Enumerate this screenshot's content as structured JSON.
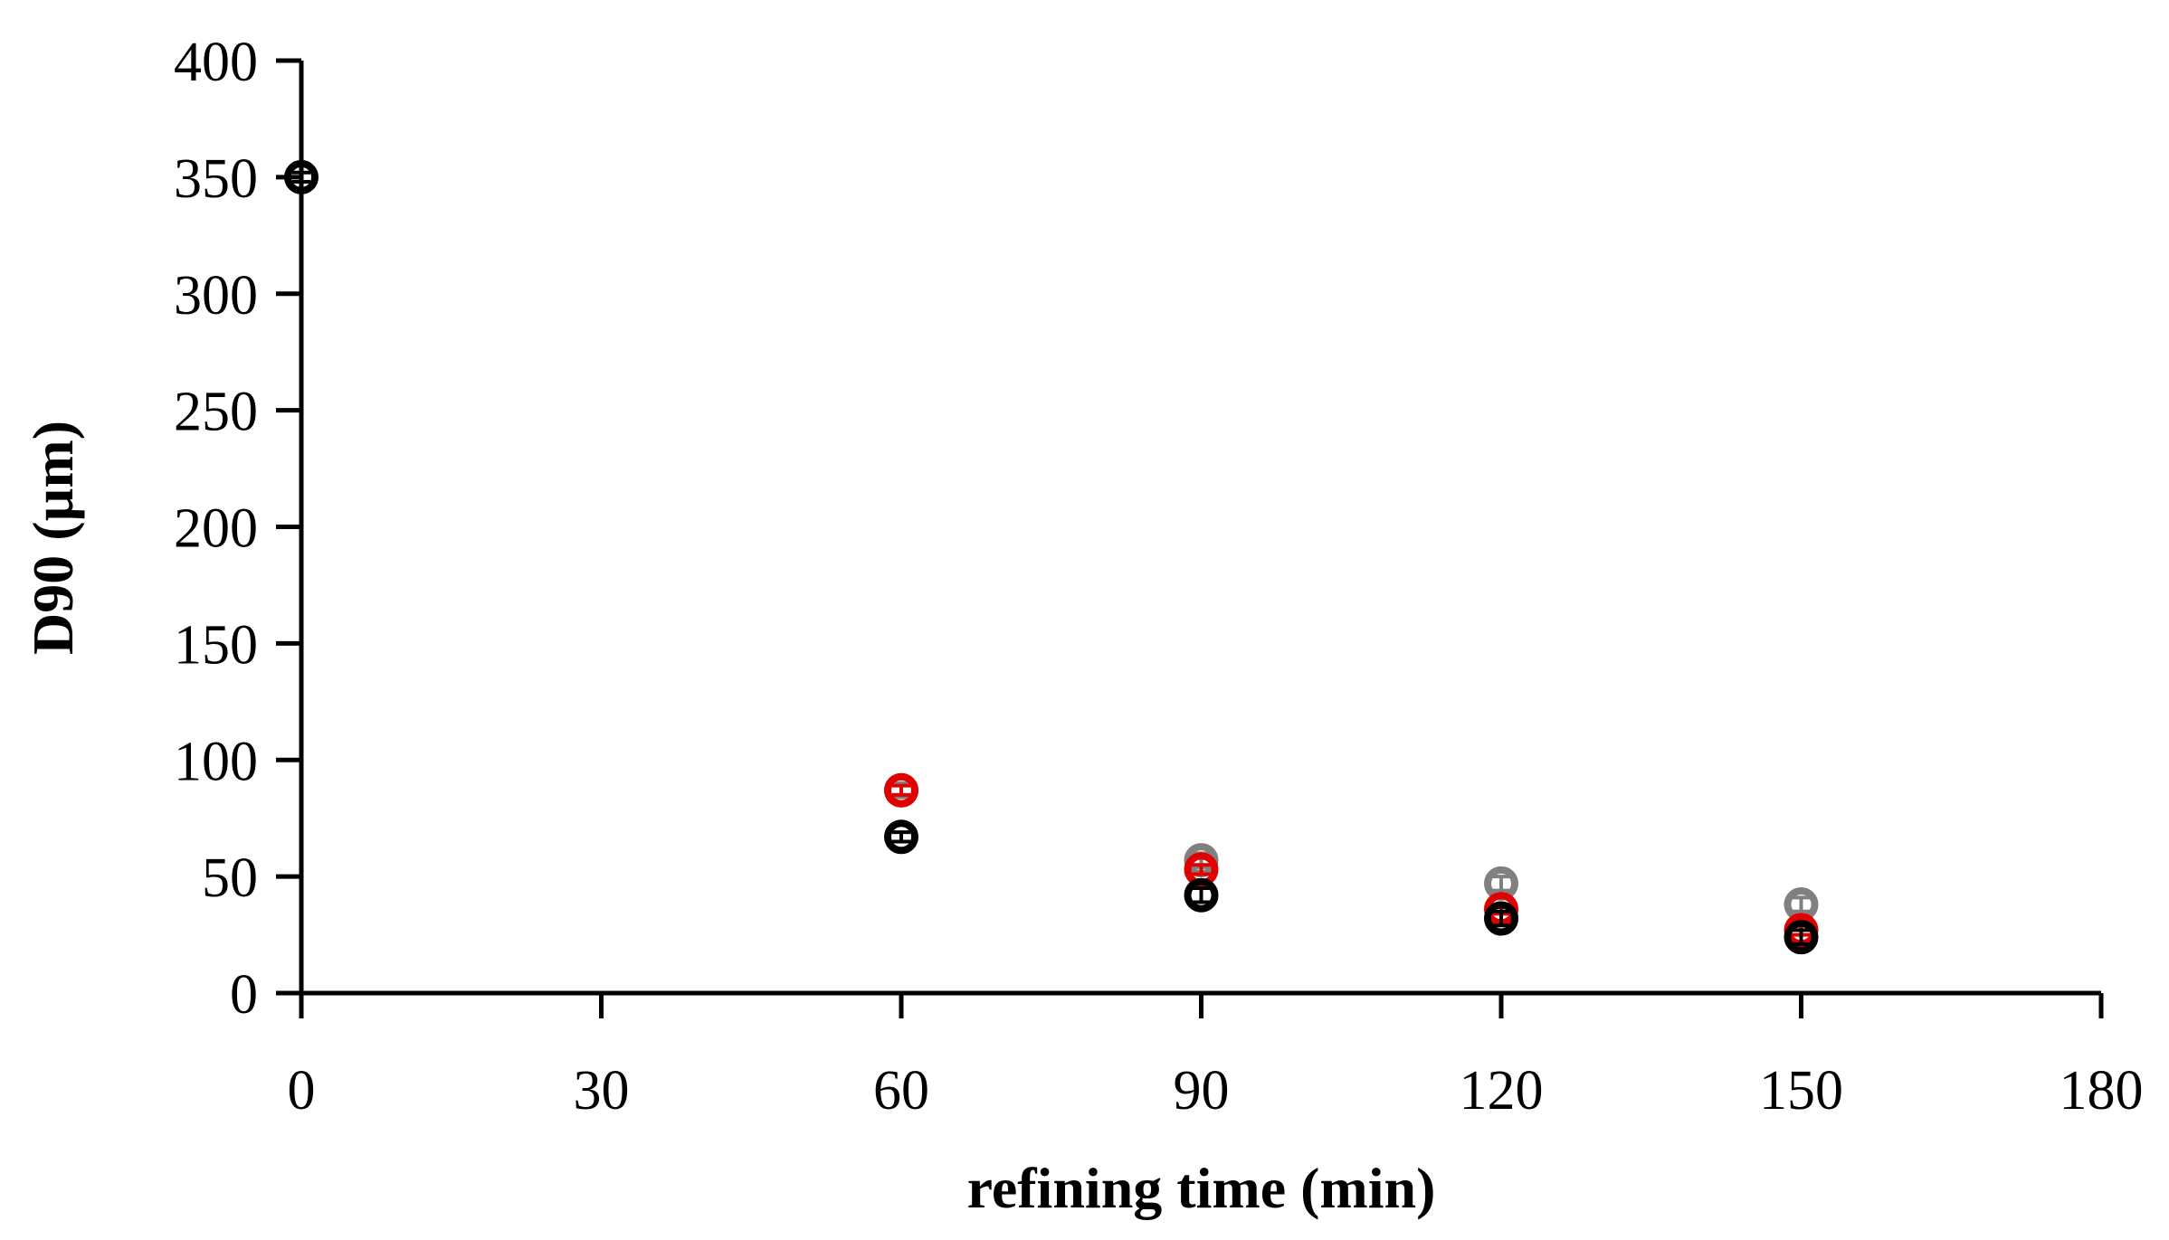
{
  "chart_data": {
    "type": "scatter",
    "title": "",
    "xlabel": "refining time (min)",
    "ylabel": "D90 (µm)",
    "xlim": [
      0,
      180
    ],
    "ylim": [
      0,
      400
    ],
    "xticks": [
      0,
      30,
      60,
      90,
      120,
      150,
      180
    ],
    "yticks": [
      0,
      50,
      100,
      150,
      200,
      250,
      300,
      350,
      400
    ],
    "grid": false,
    "legend": null,
    "series": [
      {
        "color": "#808080",
        "marker": "open-circle",
        "points": [
          {
            "x": 60,
            "y": 87,
            "err": 3
          },
          {
            "x": 90,
            "y": 57,
            "err": 3
          },
          {
            "x": 120,
            "y": 47,
            "err": 3
          },
          {
            "x": 150,
            "y": 38,
            "err": 3
          }
        ]
      },
      {
        "color": "#e00000",
        "marker": "open-circle",
        "points": [
          {
            "x": 60,
            "y": 87,
            "err": 2
          },
          {
            "x": 90,
            "y": 53,
            "err": 2
          },
          {
            "x": 120,
            "y": 36,
            "err": 2
          },
          {
            "x": 150,
            "y": 27,
            "err": 2
          }
        ]
      },
      {
        "color": "#000000",
        "marker": "open-circle",
        "points": [
          {
            "x": 0,
            "y": 350,
            "err": 2
          },
          {
            "x": 60,
            "y": 67,
            "err": 2
          },
          {
            "x": 90,
            "y": 42,
            "err": 3
          },
          {
            "x": 120,
            "y": 32,
            "err": 3
          },
          {
            "x": 150,
            "y": 24,
            "err": 3
          }
        ]
      }
    ]
  }
}
